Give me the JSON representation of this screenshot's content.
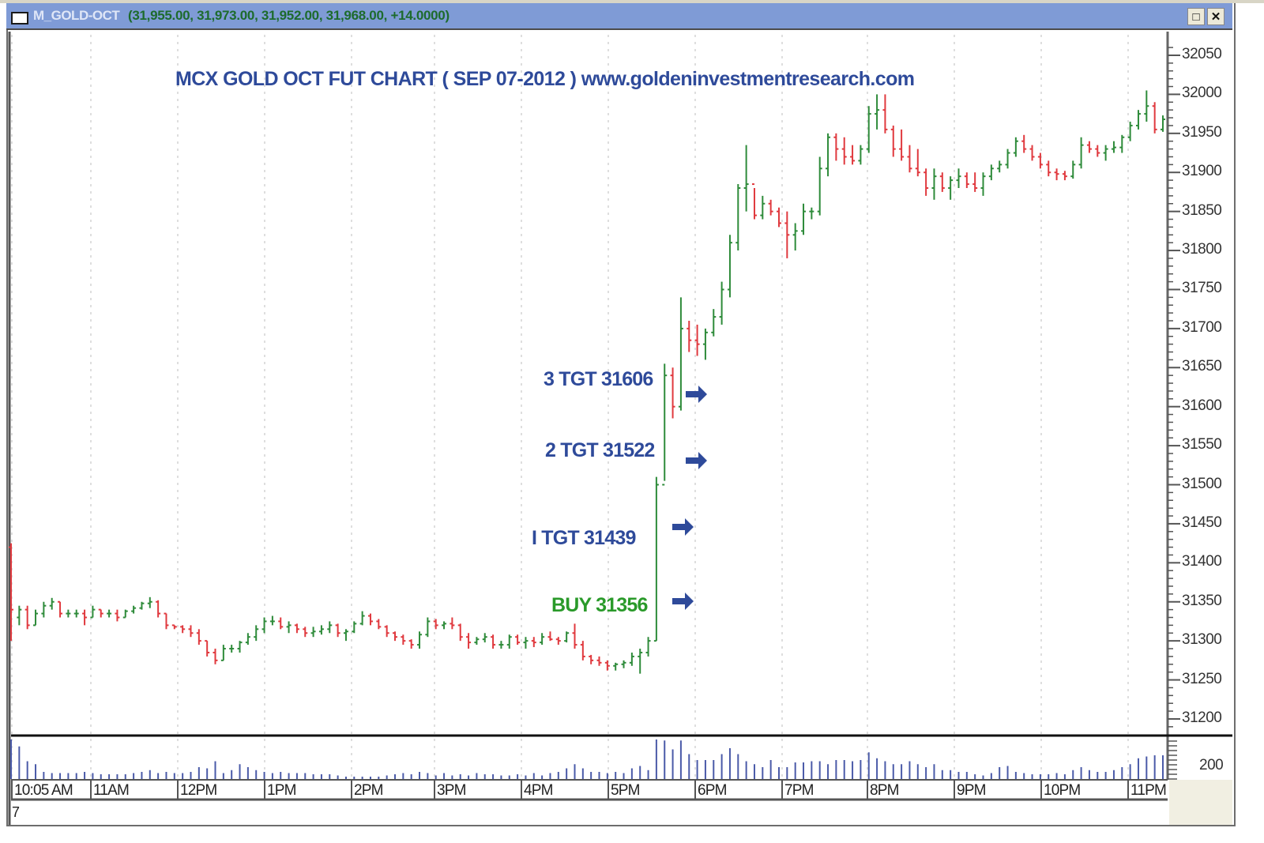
{
  "window": {
    "symbol": "M_GOLD-OCT",
    "ohlc_text": "(31,955.00, 31,973.00, 31,952.00, 31,968.00, +14.0000)",
    "buttons": {
      "maximize": "□",
      "close": "✕"
    }
  },
  "colors": {
    "up_bar": "#2e8b3a",
    "down_bar": "#e0393e",
    "volume": "#4a5aa8",
    "title_text": "#2e4a9a",
    "buy_text": "#2a9a2a",
    "target_text": "#2e4a9a",
    "arrow": "#2e4a9a",
    "titlebar": "#7f9bd6"
  },
  "bottom_label": "7",
  "chart_data": {
    "type": "ohlc",
    "title": "MCX GOLD OCT FUT  CHART ( SEP 07-2012 ) www.goldeninvestmentresearch.com",
    "xlabel": "",
    "ylabel": "",
    "ylim": [
      31180,
      32070
    ],
    "grid": "vertical dotted at hour marks",
    "y_ticks": [
      32050,
      32000,
      31950,
      31900,
      31850,
      31800,
      31750,
      31700,
      31650,
      31600,
      31550,
      31500,
      31450,
      31400,
      31350,
      31300,
      31250,
      31200
    ],
    "x_ticks": [
      "10:05 AM",
      "11AM",
      "12PM",
      "1PM",
      "2PM",
      "3PM",
      "4PM",
      "5PM",
      "6PM",
      "7PM",
      "8PM",
      "9PM",
      "10PM",
      "11PM"
    ],
    "volume_axis_label": "200",
    "annotations": [
      {
        "label": "3 TGT 31606",
        "price": 31606,
        "kind": "target"
      },
      {
        "label": "2 TGT 31522",
        "price": 31522,
        "kind": "target"
      },
      {
        "label": "I TGT 31439",
        "price": 31439,
        "kind": "target"
      },
      {
        "label": "BUY 31356",
        "price": 31356,
        "kind": "buy"
      }
    ],
    "last_bar": {
      "open": 31955,
      "high": 31973,
      "low": 31952,
      "close": 31968,
      "change": 14
    },
    "bars_note": "Approximate OHLC values read from chart; [open, high, low, close, volume]",
    "bars": [
      [
        31420,
        31425,
        31300,
        31340,
        75
      ],
      [
        31330,
        31345,
        31320,
        31340,
        55
      ],
      [
        31340,
        31345,
        31315,
        31320,
        30
      ],
      [
        31320,
        31340,
        31320,
        31335,
        25
      ],
      [
        31335,
        31350,
        31330,
        31345,
        12
      ],
      [
        31345,
        31355,
        31340,
        31350,
        10
      ],
      [
        31350,
        31350,
        31330,
        31335,
        10
      ],
      [
        31335,
        31340,
        31330,
        31335,
        10
      ],
      [
        31335,
        31340,
        31330,
        31335,
        10
      ],
      [
        31335,
        31340,
        31320,
        31330,
        12
      ],
      [
        31330,
        31345,
        31330,
        31340,
        10
      ],
      [
        31340,
        31340,
        31330,
        31335,
        8
      ],
      [
        31335,
        31340,
        31330,
        31335,
        8
      ],
      [
        31335,
        31340,
        31325,
        31330,
        8
      ],
      [
        31330,
        31340,
        31330,
        31338,
        8
      ],
      [
        31338,
        31345,
        31335,
        31342,
        10
      ],
      [
        31342,
        31350,
        31340,
        31348,
        12
      ],
      [
        31348,
        31356,
        31342,
        31350,
        15
      ],
      [
        31350,
        31352,
        31330,
        31335,
        10
      ],
      [
        31335,
        31335,
        31315,
        31320,
        12
      ],
      [
        31320,
        31320,
        31315,
        31318,
        10
      ],
      [
        31318,
        31320,
        31310,
        31315,
        10
      ],
      [
        31315,
        31320,
        31305,
        31310,
        12
      ],
      [
        31310,
        31315,
        31295,
        31300,
        20
      ],
      [
        31300,
        31300,
        31280,
        31285,
        18
      ],
      [
        31285,
        31290,
        31270,
        31275,
        30
      ],
      [
        31275,
        31295,
        31275,
        31290,
        10
      ],
      [
        31290,
        31295,
        31285,
        31290,
        15
      ],
      [
        31290,
        31300,
        31285,
        31298,
        25
      ],
      [
        31298,
        31310,
        31295,
        31305,
        20
      ],
      [
        31305,
        31320,
        31300,
        31315,
        15
      ],
      [
        31315,
        31330,
        31310,
        31325,
        12
      ],
      [
        31325,
        31332,
        31320,
        31325,
        10
      ],
      [
        31325,
        31330,
        31315,
        31318,
        12
      ],
      [
        31318,
        31325,
        31310,
        31320,
        10
      ],
      [
        31320,
        31322,
        31310,
        31315,
        10
      ],
      [
        31315,
        31318,
        31305,
        31310,
        10
      ],
      [
        31310,
        31318,
        31305,
        31312,
        8
      ],
      [
        31312,
        31320,
        31308,
        31315,
        8
      ],
      [
        31315,
        31325,
        31310,
        31320,
        8
      ],
      [
        31320,
        31322,
        31305,
        31310,
        6
      ],
      [
        31310,
        31315,
        31300,
        31312,
        4
      ],
      [
        31312,
        31325,
        31310,
        31322,
        4
      ],
      [
        31322,
        31338,
        31320,
        31332,
        4
      ],
      [
        31332,
        31335,
        31320,
        31325,
        4
      ],
      [
        31325,
        31328,
        31315,
        31318,
        4
      ],
      [
        31318,
        31320,
        31305,
        31310,
        6
      ],
      [
        31310,
        31312,
        31300,
        31305,
        8
      ],
      [
        31305,
        31308,
        31295,
        31300,
        10
      ],
      [
        31300,
        31302,
        31290,
        31295,
        8
      ],
      [
        31295,
        31312,
        31290,
        31308,
        12
      ],
      [
        31308,
        31330,
        31305,
        31325,
        10
      ],
      [
        31325,
        31328,
        31315,
        31320,
        6
      ],
      [
        31320,
        31325,
        31315,
        31322,
        10
      ],
      [
        31322,
        31330,
        31315,
        31320,
        6
      ],
      [
        31320,
        31322,
        31300,
        31305,
        8
      ],
      [
        31305,
        31310,
        31290,
        31298,
        6
      ],
      [
        31298,
        31305,
        31295,
        31302,
        10
      ],
      [
        31302,
        31310,
        31298,
        31305,
        8
      ],
      [
        31305,
        31308,
        31290,
        31295,
        8
      ],
      [
        31295,
        31300,
        31290,
        31295,
        6
      ],
      [
        31295,
        31308,
        31290,
        31305,
        6
      ],
      [
        31305,
        31308,
        31295,
        31298,
        8
      ],
      [
        31298,
        31305,
        31290,
        31300,
        6
      ],
      [
        31300,
        31305,
        31292,
        31298,
        10
      ],
      [
        31298,
        31310,
        31295,
        31305,
        6
      ],
      [
        31305,
        31312,
        31300,
        31302,
        10
      ],
      [
        31302,
        31305,
        31295,
        31300,
        12
      ],
      [
        31300,
        31312,
        31298,
        31310,
        18
      ],
      [
        31310,
        31322,
        31290,
        31295,
        25
      ],
      [
        31295,
        31300,
        31275,
        31280,
        18
      ],
      [
        31280,
        31282,
        31270,
        31275,
        12
      ],
      [
        31275,
        31280,
        31268,
        31272,
        12
      ],
      [
        31272,
        31275,
        31262,
        31268,
        10
      ],
      [
        31268,
        31272,
        31262,
        31270,
        12
      ],
      [
        31270,
        31275,
        31265,
        31272,
        10
      ],
      [
        31272,
        31285,
        31268,
        31280,
        18
      ],
      [
        31280,
        31290,
        31258,
        31285,
        22
      ],
      [
        31285,
        31305,
        31280,
        31300,
        15
      ],
      [
        31300,
        31510,
        31300,
        31500,
        68
      ],
      [
        31500,
        31655,
        31505,
        31640,
        65
      ],
      [
        31640,
        31650,
        31585,
        31600,
        50
      ],
      [
        31600,
        31740,
        31595,
        31700,
        65
      ],
      [
        31700,
        31710,
        31670,
        31685,
        42
      ],
      [
        31685,
        31705,
        31665,
        31680,
        32
      ],
      [
        31680,
        31700,
        31660,
        31695,
        32
      ],
      [
        31695,
        31725,
        31690,
        31715,
        32
      ],
      [
        31715,
        31760,
        31705,
        31750,
        42
      ],
      [
        31750,
        31820,
        31740,
        31810,
        52
      ],
      [
        31810,
        31885,
        31800,
        31880,
        42
      ],
      [
        31880,
        31935,
        31850,
        31885,
        30
      ],
      [
        31885,
        31880,
        31840,
        31845,
        25
      ],
      [
        31845,
        31870,
        31840,
        31860,
        20
      ],
      [
        31860,
        31865,
        31845,
        31850,
        32
      ],
      [
        31850,
        31855,
        31830,
        31835,
        20
      ],
      [
        31835,
        31850,
        31790,
        31820,
        20
      ],
      [
        31820,
        31835,
        31800,
        31825,
        28
      ],
      [
        31825,
        31860,
        31820,
        31850,
        28
      ],
      [
        31850,
        31855,
        31840,
        31850,
        30
      ],
      [
        31850,
        31920,
        31845,
        31905,
        30
      ],
      [
        31905,
        31950,
        31895,
        31945,
        25
      ],
      [
        31945,
        31950,
        31915,
        31930,
        32
      ],
      [
        31930,
        31945,
        31910,
        31920,
        32
      ],
      [
        31920,
        31935,
        31910,
        31915,
        30
      ],
      [
        31915,
        31935,
        31910,
        31930,
        32
      ],
      [
        31930,
        31985,
        31925,
        31975,
        45
      ],
      [
        31975,
        32000,
        31955,
        31980,
        35
      ],
      [
        31980,
        32000,
        31950,
        31955,
        30
      ],
      [
        31955,
        31960,
        31920,
        31930,
        25
      ],
      [
        31930,
        31955,
        31915,
        31920,
        25
      ],
      [
        31920,
        31935,
        31900,
        31905,
        30
      ],
      [
        31905,
        31930,
        31895,
        31900,
        25
      ],
      [
        31900,
        31905,
        31870,
        31880,
        20
      ],
      [
        31880,
        31905,
        31865,
        31895,
        25
      ],
      [
        31895,
        31900,
        31875,
        31880,
        15
      ],
      [
        31880,
        31895,
        31865,
        31890,
        15
      ],
      [
        31890,
        31905,
        31880,
        31895,
        12
      ],
      [
        31895,
        31900,
        31880,
        31885,
        12
      ],
      [
        31885,
        31900,
        31875,
        31880,
        8
      ],
      [
        31880,
        31900,
        31870,
        31895,
        6
      ],
      [
        31895,
        31910,
        31890,
        31905,
        10
      ],
      [
        31905,
        31915,
        31900,
        31910,
        20
      ],
      [
        31910,
        31930,
        31905,
        31925,
        22
      ],
      [
        31925,
        31945,
        31920,
        31940,
        12
      ],
      [
        31940,
        31948,
        31925,
        31930,
        10
      ],
      [
        31930,
        31935,
        31915,
        31920,
        8
      ],
      [
        31920,
        31925,
        31905,
        31910,
        8
      ],
      [
        31910,
        31915,
        31895,
        31900,
        8
      ],
      [
        31900,
        31905,
        31890,
        31898,
        10
      ],
      [
        31898,
        31902,
        31890,
        31895,
        8
      ],
      [
        31895,
        31915,
        31892,
        31910,
        15
      ],
      [
        31910,
        31945,
        31905,
        31935,
        20
      ],
      [
        31935,
        31940,
        31925,
        31930,
        15
      ],
      [
        31930,
        31935,
        31920,
        31925,
        12
      ],
      [
        31925,
        31935,
        31915,
        31930,
        12
      ],
      [
        31930,
        31940,
        31925,
        31932,
        15
      ],
      [
        31932,
        31948,
        31925,
        31945,
        20
      ],
      [
        31945,
        31965,
        31940,
        31960,
        25
      ],
      [
        31960,
        31980,
        31955,
        31975,
        35
      ],
      [
        31975,
        32005,
        31965,
        31985,
        38
      ],
      [
        31985,
        31990,
        31950,
        31955,
        40
      ],
      [
        31955,
        31973,
        31952,
        31968,
        40
      ]
    ]
  }
}
